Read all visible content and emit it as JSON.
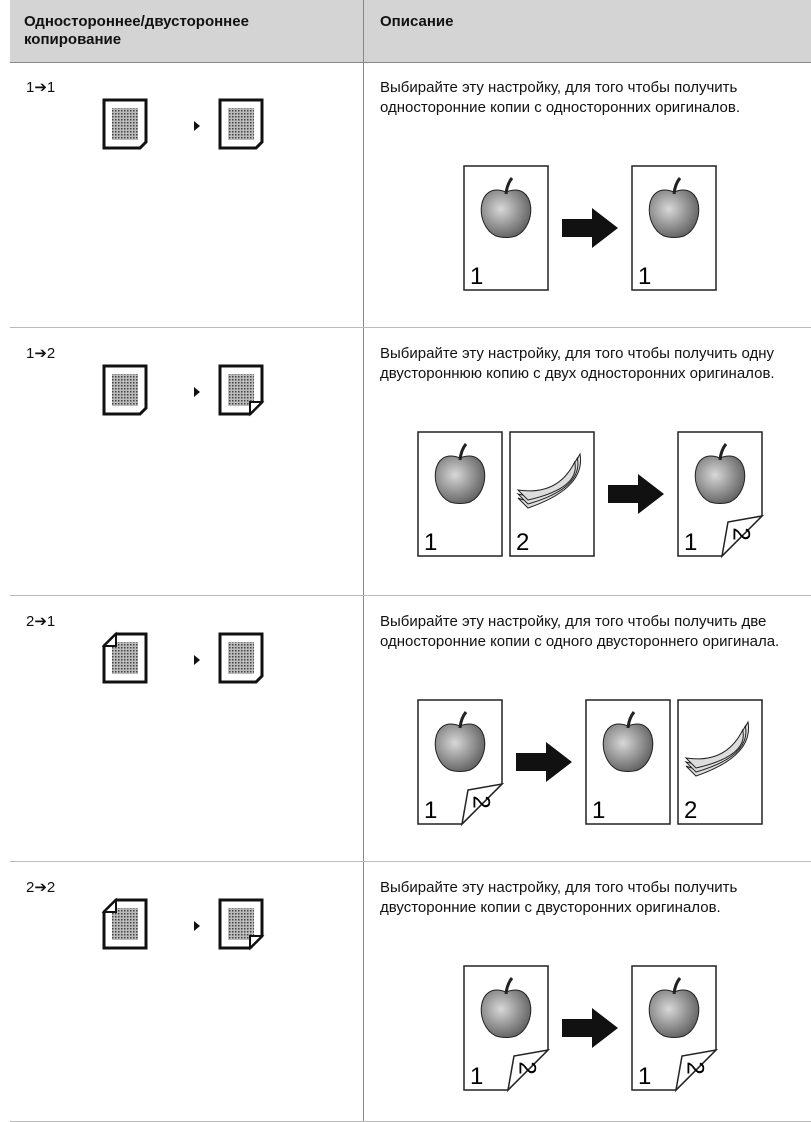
{
  "header": {
    "mode": "Одностороннее/двустороннее копирование",
    "description": "Описание"
  },
  "rows": [
    {
      "mode": "1➔1",
      "description": "Выбирайте эту настройку, для того чтобы получить односторонние копии с односторонних оригиналов.",
      "originals": [
        {
          "front": "1"
        }
      ],
      "copies": [
        {
          "front": "1"
        }
      ]
    },
    {
      "mode": "1➔2",
      "description": "Выбирайте эту настройку, для того чтобы получить одну двустороннюю копию с двух односторонних оригиналов.",
      "originals": [
        {
          "front": "1"
        },
        {
          "front": "2"
        }
      ],
      "copies": [
        {
          "front": "1",
          "back": "2"
        }
      ]
    },
    {
      "mode": "2➔1",
      "description": "Выбирайте эту настройку, для того чтобы получить две односторонние копии с одного двустороннего оригинала.",
      "originals": [
        {
          "front": "1",
          "back": "2"
        }
      ],
      "copies": [
        {
          "front": "1"
        },
        {
          "front": "2"
        }
      ]
    },
    {
      "mode": "2➔2",
      "description": "Выбирайте эту настройку, для того чтобы получить двусторонние копии с двусторонних оригиналов.",
      "originals": [
        {
          "front": "1",
          "back": "2"
        }
      ],
      "copies": [
        {
          "front": "1",
          "back": "2"
        }
      ]
    }
  ]
}
